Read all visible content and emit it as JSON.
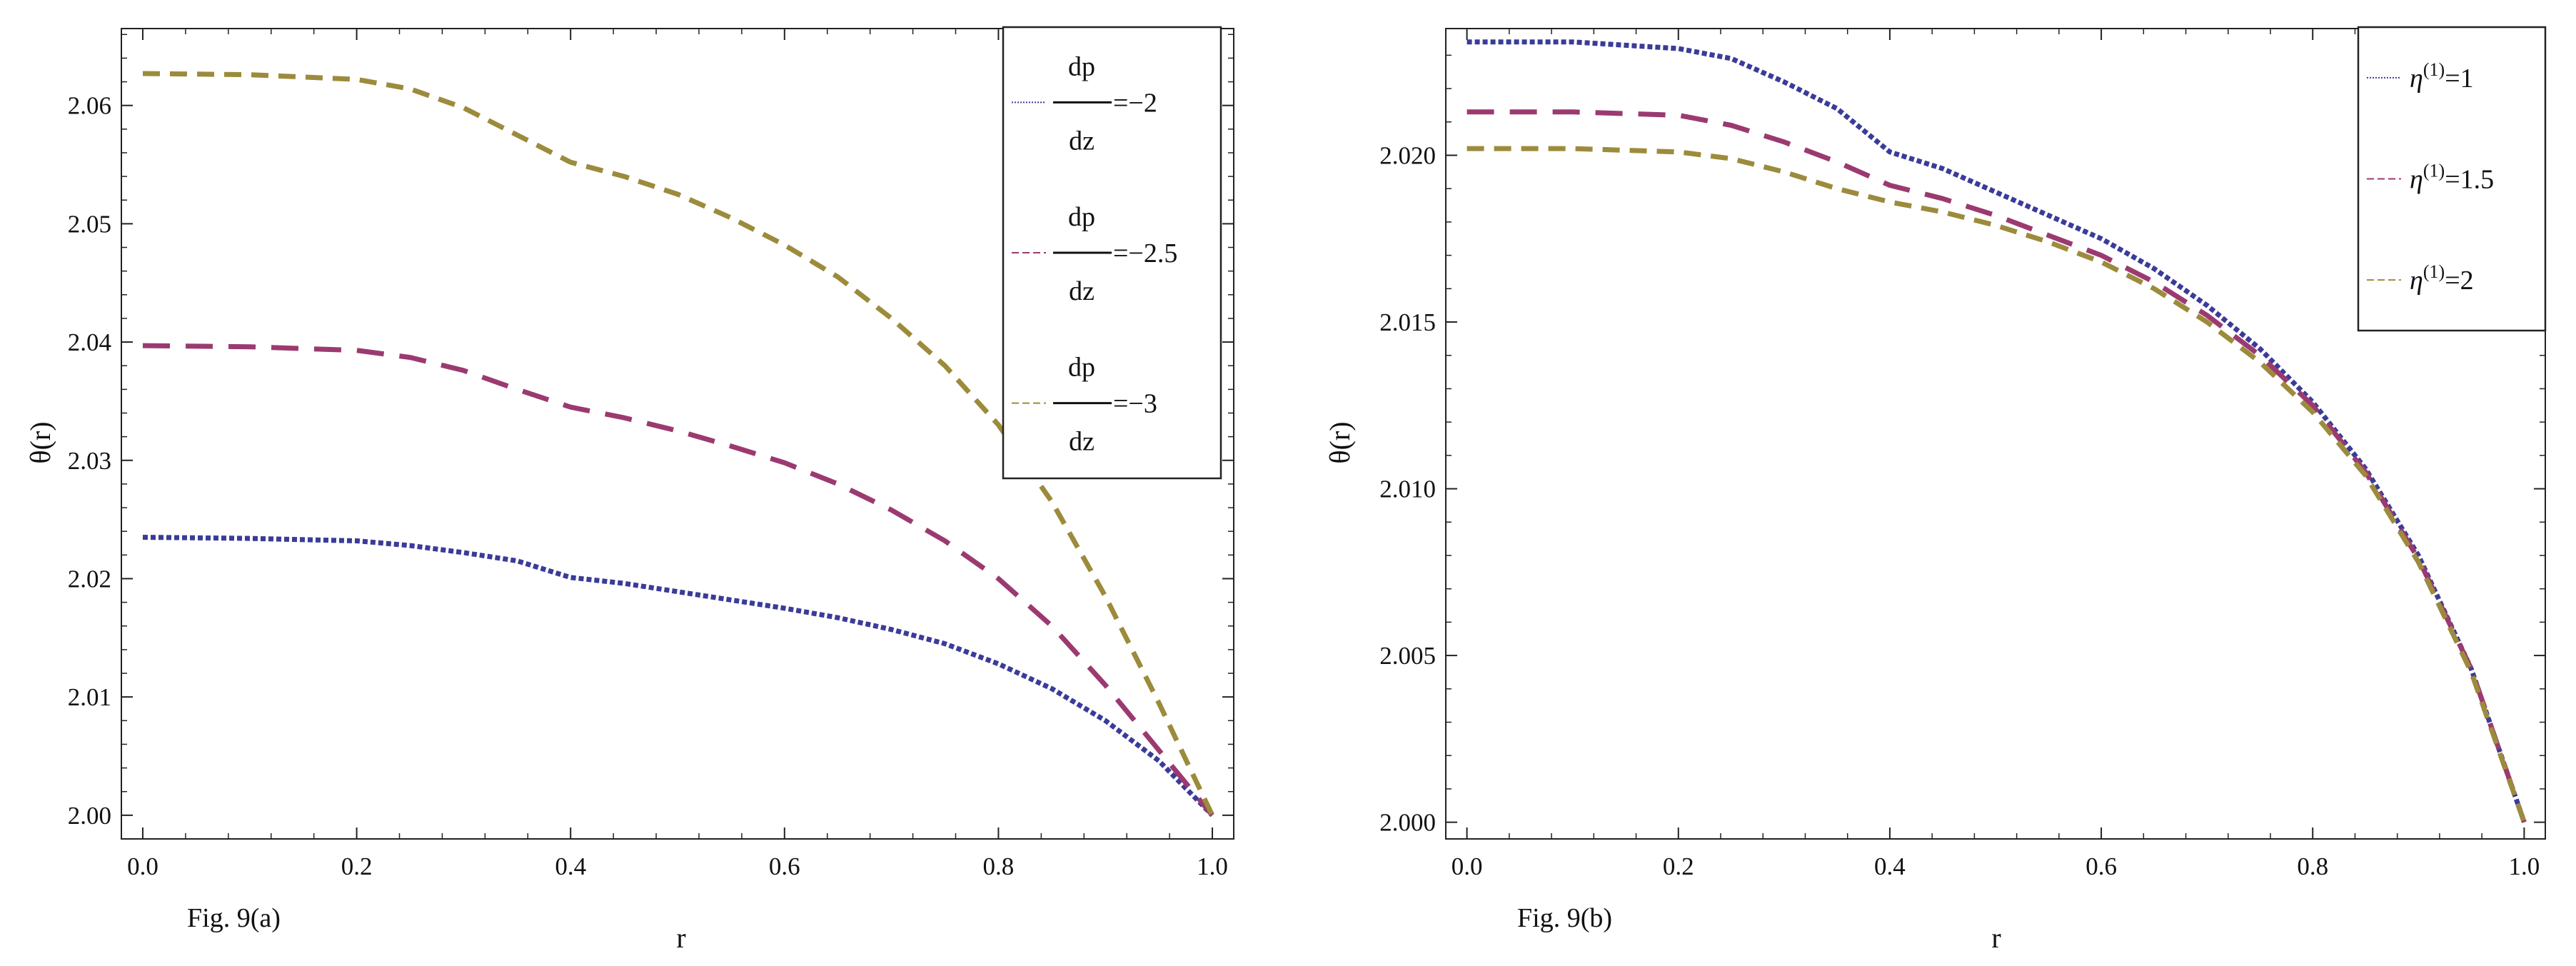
{
  "chart_data": [
    {
      "type": "line",
      "caption": "Fig. 9(a)",
      "xlabel": "r",
      "ylabel": "θ(r)",
      "xlim": [
        -0.02,
        1.02
      ],
      "ylim": [
        1.998,
        2.0665
      ],
      "xticks": [
        "0.0",
        "0.2",
        "0.4",
        "0.6",
        "0.8",
        "1.0"
      ],
      "yticks": [
        "2.00",
        "2.01",
        "2.02",
        "2.03",
        "2.04",
        "2.05",
        "2.06"
      ],
      "legend_position": "top-right",
      "x": [
        0.0,
        0.1,
        0.2,
        0.25,
        0.3,
        0.35,
        0.4,
        0.45,
        0.5,
        0.55,
        0.6,
        0.65,
        0.7,
        0.75,
        0.8,
        0.85,
        0.9,
        0.95,
        1.0
      ],
      "series": [
        {
          "name": "-2",
          "legend": {
            "num": "dp",
            "den": "dz",
            "value": "=−2"
          },
          "color": "#3b3b9a",
          "style": "dotted",
          "values": [
            2.0235,
            2.0234,
            2.0232,
            2.0228,
            2.0222,
            2.0215,
            2.0201,
            2.0196,
            2.0189,
            2.0182,
            2.0175,
            2.0167,
            2.0157,
            2.0145,
            2.0128,
            2.0107,
            2.008,
            2.0046,
            2.0
          ]
        },
        {
          "name": "-2.5",
          "legend": {
            "num": "dp",
            "den": "dz",
            "value": "=−2.5"
          },
          "color": "#9b3a70",
          "style": "long-dash",
          "values": [
            2.0397,
            2.0396,
            2.0393,
            2.0387,
            2.0376,
            2.036,
            2.0345,
            2.0336,
            2.0325,
            2.0312,
            2.0298,
            2.028,
            2.0258,
            2.0232,
            2.02,
            2.016,
            2.011,
            2.0055,
            2.0
          ]
        },
        {
          "name": "-3",
          "legend": {
            "num": "dp",
            "den": "dz",
            "value": "=−3"
          },
          "color": "#9c8b3c",
          "style": "medium-dash",
          "values": [
            2.0627,
            2.0626,
            2.0622,
            2.0614,
            2.0598,
            2.0575,
            2.0552,
            2.054,
            2.0525,
            2.0505,
            2.0482,
            2.0455,
            2.042,
            2.038,
            2.033,
            2.0265,
            2.0185,
            2.0095,
            2.0
          ]
        }
      ]
    },
    {
      "type": "line",
      "caption": "Fig. 9(b)",
      "xlabel": "r",
      "ylabel": "θ(r)",
      "xlim": [
        -0.02,
        1.02
      ],
      "ylim": [
        1.9995,
        2.0238
      ],
      "xticks": [
        "0.0",
        "0.2",
        "0.4",
        "0.6",
        "0.8",
        "1.0"
      ],
      "yticks": [
        "2.000",
        "2.005",
        "2.010",
        "2.015",
        "2.020"
      ],
      "legend_position": "top-right",
      "x": [
        0.0,
        0.1,
        0.2,
        0.25,
        0.3,
        0.35,
        0.4,
        0.45,
        0.5,
        0.55,
        0.6,
        0.65,
        0.7,
        0.75,
        0.8,
        0.85,
        0.9,
        0.95,
        1.0
      ],
      "series": [
        {
          "name": "η(1)=1",
          "legend": {
            "base": "η",
            "sup": "(1)",
            "value": "=1"
          },
          "color": "#3b3b9a",
          "style": "dotted",
          "values": [
            2.0234,
            2.0234,
            2.0232,
            2.0229,
            2.0222,
            2.0214,
            2.0201,
            2.0196,
            2.0189,
            2.0182,
            2.0175,
            2.0166,
            2.0155,
            2.0142,
            2.0126,
            2.0106,
            2.008,
            2.0046,
            2.0
          ]
        },
        {
          "name": "η(1)=1.5",
          "legend": {
            "base": "η",
            "sup": "(1)",
            "value": "=1.5"
          },
          "color": "#9b3a70",
          "style": "long-dash",
          "values": [
            2.0213,
            2.0213,
            2.0212,
            2.0209,
            2.0204,
            2.0198,
            2.0191,
            2.0187,
            2.0182,
            2.0176,
            2.017,
            2.0162,
            2.0152,
            2.014,
            2.0125,
            2.0105,
            2.0079,
            2.0046,
            2.0
          ]
        },
        {
          "name": "η(1)=2",
          "legend": {
            "base": "η",
            "sup": "(1)",
            "value": "=2"
          },
          "color": "#9c8b3c",
          "style": "medium-dash",
          "values": [
            2.0202,
            2.0202,
            2.0201,
            2.0199,
            2.0195,
            2.019,
            2.0186,
            2.0183,
            2.0179,
            2.0174,
            2.0168,
            2.016,
            2.015,
            2.0138,
            2.0123,
            2.0104,
            2.0078,
            2.0045,
            2.0
          ]
        }
      ]
    }
  ]
}
